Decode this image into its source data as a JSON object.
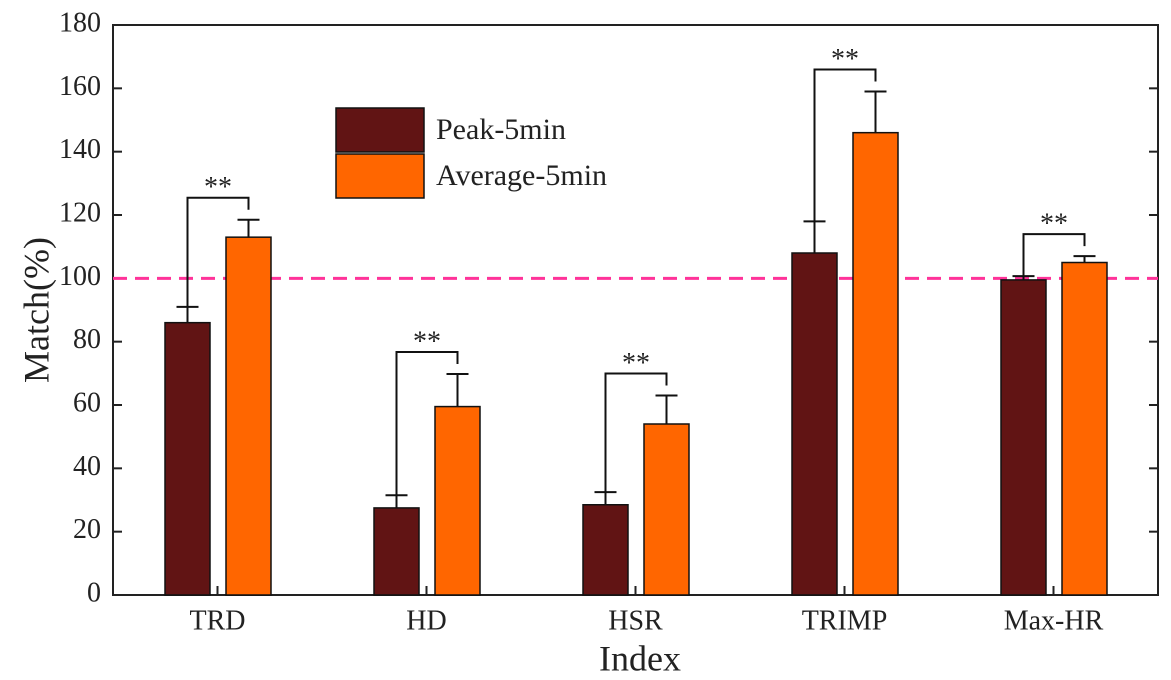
{
  "chart_data": {
    "type": "bar",
    "categories": [
      "TRD",
      "HD",
      "HSR",
      "TRIMP",
      "Max-HR"
    ],
    "series": [
      {
        "name": "Peak-5min",
        "color": "#611414",
        "values": [
          86,
          27.5,
          28.5,
          108,
          99.5
        ],
        "errors": [
          5,
          4,
          4,
          10,
          1.2
        ]
      },
      {
        "name": "Average-5min",
        "color": "#ff6600",
        "values": [
          113,
          59.5,
          54,
          146,
          105
        ],
        "errors": [
          5.5,
          10.3,
          9,
          13,
          2
        ]
      }
    ],
    "significance": [
      "**",
      "**",
      "**",
      "**",
      "**"
    ],
    "reference_line": {
      "value": 100,
      "color": "#ff3399",
      "style": "dashed"
    },
    "x_label": "Index",
    "y_label": "Match(%)",
    "ylim": [
      0,
      180
    ],
    "yticks": [
      0,
      20,
      40,
      60,
      80,
      100,
      120,
      140,
      160,
      180
    ],
    "legend": "upper center",
    "grid": false
  }
}
